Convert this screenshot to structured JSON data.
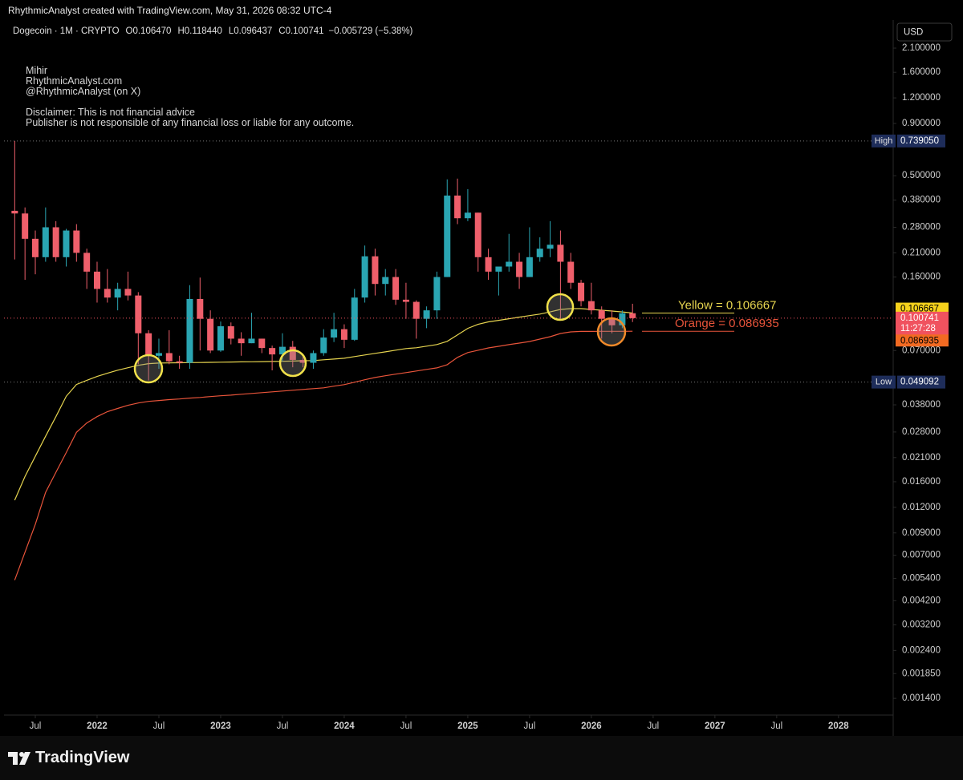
{
  "header": "RhythmicAnalyst created with TradingView.com, May 31, 2026 08:32 UTC-4",
  "legend": {
    "symbol": "Dogecoin · 1M · CRYPTO",
    "items": [
      {
        "key": "O",
        "value": "0.106470"
      },
      {
        "key": "H",
        "value": "0.118440"
      },
      {
        "key": "L",
        "value": "0.096437"
      },
      {
        "key": "C",
        "value": "0.100741"
      }
    ],
    "change": "−0.005729 (−5.38%)"
  },
  "notes": [
    "Mihir",
    "RhythmicAnalyst.com",
    "@RhythmicAnalyst (on X)",
    "Disclaimer: This is not financial advice",
    "Publisher is not responsible of any financial loss or liable for any outcome."
  ],
  "logo": "TradingView",
  "chart_data": {
    "type": "candlestick",
    "currency": "USD",
    "x": [
      "2021-05",
      "2021-06",
      "2021-07",
      "2021-08",
      "2021-09",
      "2021-10",
      "2021-11",
      "2021-12",
      "2022-01",
      "2022-02",
      "2022-03",
      "2022-04",
      "2022-05",
      "2022-06",
      "2022-07",
      "2022-08",
      "2022-09",
      "2022-10",
      "2022-11",
      "2022-12",
      "2023-01",
      "2023-02",
      "2023-03",
      "2023-04",
      "2023-05",
      "2023-06",
      "2023-07",
      "2023-08",
      "2023-09",
      "2023-10",
      "2023-11",
      "2023-12",
      "2024-01",
      "2024-02",
      "2024-03",
      "2024-04",
      "2024-05",
      "2024-06",
      "2024-07",
      "2024-08",
      "2024-09",
      "2024-10",
      "2024-11",
      "2024-12",
      "2025-01",
      "2025-02",
      "2025-03",
      "2025-04",
      "2025-05",
      "2025-06",
      "2025-07",
      "2025-08",
      "2025-09",
      "2025-10",
      "2025-11",
      "2025-12",
      "2026-01",
      "2026-02",
      "2026-03",
      "2026-04",
      "2026-05"
    ],
    "open": [
      0.337,
      0.327,
      0.246,
      0.2,
      0.28,
      0.2,
      0.27,
      0.21,
      0.17,
      0.14,
      0.127,
      0.14,
      0.13,
      0.085,
      0.066,
      0.068,
      0.062,
      0.061,
      0.125,
      0.1,
      0.07,
      0.092,
      0.08,
      0.076,
      0.08,
      0.072,
      0.067,
      0.073,
      0.063,
      0.061,
      0.068,
      0.081,
      0.089,
      0.079,
      0.127,
      0.202,
      0.148,
      0.16,
      0.124,
      0.121,
      0.1,
      0.11,
      0.16,
      0.4,
      0.31,
      0.33,
      0.2,
      0.17,
      0.18,
      0.19,
      0.16,
      0.2,
      0.22,
      0.23,
      0.19,
      0.15,
      0.122,
      0.11,
      0.1,
      0.093,
      0.10647
    ],
    "high": [
      0.739,
      0.35,
      0.27,
      0.35,
      0.3,
      0.275,
      0.29,
      0.22,
      0.19,
      0.175,
      0.15,
      0.17,
      0.135,
      0.088,
      0.08,
      0.088,
      0.066,
      0.146,
      0.159,
      0.11,
      0.097,
      0.096,
      0.086,
      0.107,
      0.08,
      0.074,
      0.085,
      0.078,
      0.066,
      0.07,
      0.089,
      0.107,
      0.094,
      0.14,
      0.228,
      0.22,
      0.175,
      0.175,
      0.15,
      0.123,
      0.115,
      0.17,
      0.48,
      0.484,
      0.43,
      0.33,
      0.22,
      0.18,
      0.26,
      0.21,
      0.28,
      0.25,
      0.3,
      0.27,
      0.21,
      0.155,
      0.15,
      0.115,
      0.11,
      0.11,
      0.11844
    ],
    "low": [
      0.195,
      0.155,
      0.165,
      0.19,
      0.19,
      0.18,
      0.19,
      0.14,
      0.12,
      0.12,
      0.11,
      0.123,
      0.06,
      0.05,
      0.057,
      0.06,
      0.057,
      0.057,
      0.07,
      0.068,
      0.069,
      0.075,
      0.066,
      0.076,
      0.068,
      0.056,
      0.062,
      0.058,
      0.058,
      0.057,
      0.066,
      0.077,
      0.072,
      0.078,
      0.12,
      0.13,
      0.13,
      0.117,
      0.1,
      0.08,
      0.09,
      0.1,
      0.16,
      0.29,
      0.3,
      0.17,
      0.155,
      0.13,
      0.17,
      0.14,
      0.16,
      0.19,
      0.2,
      0.1,
      0.14,
      0.115,
      0.105,
      0.08,
      0.085,
      0.09,
      0.096437
    ],
    "close": [
      0.327,
      0.246,
      0.2,
      0.28,
      0.2,
      0.27,
      0.21,
      0.17,
      0.14,
      0.127,
      0.14,
      0.13,
      0.085,
      0.066,
      0.068,
      0.062,
      0.061,
      0.125,
      0.1,
      0.07,
      0.092,
      0.08,
      0.076,
      0.08,
      0.072,
      0.067,
      0.073,
      0.063,
      0.061,
      0.068,
      0.081,
      0.089,
      0.079,
      0.127,
      0.202,
      0.148,
      0.16,
      0.124,
      0.121,
      0.1,
      0.11,
      0.16,
      0.4,
      0.31,
      0.33,
      0.2,
      0.17,
      0.18,
      0.19,
      0.16,
      0.2,
      0.22,
      0.23,
      0.19,
      0.15,
      0.122,
      0.11,
      0.1,
      0.093,
      0.1065,
      0.100741
    ],
    "up_color": "#2aa5b2",
    "down_color": "#ef5f6b",
    "series": [
      {
        "color": "#e6d44f",
        "label": "Yellow =  0.106667",
        "values": [
          0.013,
          0.017,
          0.0213,
          0.0267,
          0.0333,
          0.0418,
          0.0478,
          0.0501,
          0.0523,
          0.0542,
          0.0561,
          0.0577,
          0.0593,
          0.0604,
          0.0608,
          0.0609,
          0.061,
          0.0611,
          0.0612,
          0.0613,
          0.0614,
          0.0615,
          0.0616,
          0.0617,
          0.0618,
          0.0619,
          0.062,
          0.0622,
          0.0624,
          0.0625,
          0.0631,
          0.0636,
          0.0642,
          0.0654,
          0.0666,
          0.0678,
          0.069,
          0.0703,
          0.0716,
          0.0722,
          0.0735,
          0.0749,
          0.0776,
          0.0834,
          0.0898,
          0.094,
          0.0966,
          0.0983,
          0.1001,
          0.1019,
          0.1037,
          0.1055,
          0.1081,
          0.1111,
          0.1121,
          0.1121,
          0.1111,
          0.1101,
          0.1091,
          0.1081,
          0.106667
        ]
      },
      {
        "color": "#e8543a",
        "label": "Orange =  0.086935",
        "values": [
          0.00529,
          0.00725,
          0.00991,
          0.0142,
          0.0178,
          0.0222,
          0.0279,
          0.031,
          0.0333,
          0.0352,
          0.0365,
          0.0378,
          0.0388,
          0.0395,
          0.0399,
          0.0403,
          0.0406,
          0.041,
          0.0413,
          0.0417,
          0.0421,
          0.0424,
          0.0428,
          0.0432,
          0.0436,
          0.044,
          0.0444,
          0.0448,
          0.0452,
          0.0456,
          0.046,
          0.0469,
          0.0477,
          0.049,
          0.0504,
          0.0517,
          0.0527,
          0.0537,
          0.0546,
          0.0556,
          0.0566,
          0.0576,
          0.0597,
          0.0648,
          0.0684,
          0.0702,
          0.0721,
          0.0734,
          0.0748,
          0.0761,
          0.0775,
          0.0796,
          0.0818,
          0.0848,
          0.0863,
          0.0868,
          0.0868,
          0.0869,
          0.0869,
          0.0869,
          0.086935
        ]
      }
    ],
    "log_scale": true,
    "ylim": [
      0.00116,
      2.88
    ],
    "yticks": [
      {
        "value": 2.1,
        "label": "2.100000"
      },
      {
        "value": 1.6,
        "label": "1.600000"
      },
      {
        "value": 1.2,
        "label": "1.200000"
      },
      {
        "value": 0.9,
        "label": "0.900000"
      },
      {
        "value": 0.5,
        "label": "0.500000"
      },
      {
        "value": 0.38,
        "label": "0.380000"
      },
      {
        "value": 0.28,
        "label": "0.280000"
      },
      {
        "value": 0.21,
        "label": "0.210000"
      },
      {
        "value": 0.16,
        "label": "0.160000"
      },
      {
        "value": 0.07,
        "label": "0.070000"
      },
      {
        "value": 0.038,
        "label": "0.038000"
      },
      {
        "value": 0.028,
        "label": "0.028000"
      },
      {
        "value": 0.021,
        "label": "0.021000"
      },
      {
        "value": 0.016,
        "label": "0.016000"
      },
      {
        "value": 0.012,
        "label": "0.012000"
      },
      {
        "value": 0.009,
        "label": "0.009000"
      },
      {
        "value": 0.007,
        "label": "0.007000"
      },
      {
        "value": 0.0054,
        "label": "0.005400"
      },
      {
        "value": 0.0042,
        "label": "0.004200"
      },
      {
        "value": 0.0032,
        "label": "0.003200"
      },
      {
        "value": 0.0024,
        "label": "0.002400"
      },
      {
        "value": 0.00185,
        "label": "0.001850"
      },
      {
        "value": 0.0014,
        "label": "0.001400"
      }
    ],
    "xlim": [
      "2021-04",
      "2028-06"
    ],
    "xticks": [
      {
        "value": "2021-07",
        "label": "Jul"
      },
      {
        "value": "2022-01",
        "label": "2022"
      },
      {
        "value": "2022-07",
        "label": "Jul"
      },
      {
        "value": "2023-01",
        "label": "2023"
      },
      {
        "value": "2023-07",
        "label": "Jul"
      },
      {
        "value": "2024-01",
        "label": "2024"
      },
      {
        "value": "2024-07",
        "label": "Jul"
      },
      {
        "value": "2025-01",
        "label": "2025"
      },
      {
        "value": "2025-07",
        "label": "Jul"
      },
      {
        "value": "2026-01",
        "label": "2026"
      },
      {
        "value": "2026-07",
        "label": "Jul"
      },
      {
        "value": "2027-01",
        "label": "2027"
      },
      {
        "value": "2027-07",
        "label": "Jul"
      },
      {
        "value": "2028-01",
        "label": "2028"
      }
    ],
    "high_line": {
      "name": "High",
      "value": 0.73905,
      "label": "0.739050"
    },
    "low_line": {
      "name": "Low",
      "value": 0.049092,
      "label": "0.049092"
    },
    "price_labels": [
      {
        "value": 0.106667,
        "label": "0.106667",
        "color": "#f6d21c",
        "text_color": "#000000"
      },
      {
        "value": 0.100741,
        "label": "0.100741",
        "countdown": "11:27:28",
        "color": "#f0525f",
        "text_color": "#ffffff"
      },
      {
        "value": 0.086935,
        "label": "0.086935",
        "color": "#f26a22",
        "text_color": "#000000"
      }
    ]
  }
}
